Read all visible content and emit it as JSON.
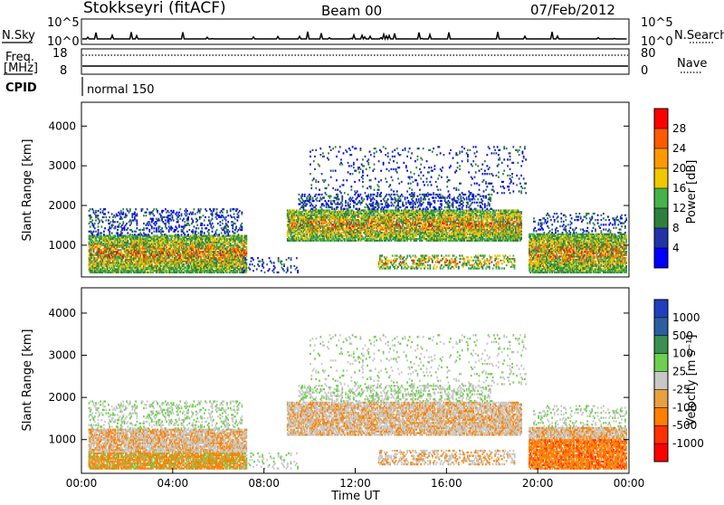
{
  "header": {
    "station": "Stokkseyri (fitACF)",
    "beam": "Beam 00",
    "date": "07/Feb/2012"
  },
  "noise_panel": {
    "left_label": "N.Sky",
    "left_top": "10^5",
    "left_bottom": "10^0",
    "right_top": "10^5",
    "right_bottom": "10^0",
    "right_label": "N.Search"
  },
  "freq_panel": {
    "left_label_1": "Freq.",
    "left_label_2": "[MHz]",
    "left_top": "18",
    "left_bottom": "8",
    "right_top": "80",
    "right_bottom": "0",
    "right_label": "Nave"
  },
  "cpid_panel": {
    "label": "CPID",
    "mode": "normal 150"
  },
  "colors": {
    "power": [
      "#0000ff",
      "#2233aa",
      "#2f7f3f",
      "#46b24a",
      "#f0c800",
      "#ff9900",
      "#ff5a00",
      "#ff0000"
    ],
    "velocity": [
      "#1f3fbf",
      "#2c5f9f",
      "#3b8f4f",
      "#6fcf4f",
      "#c8c8c8",
      "#e8a040",
      "#ff7f00",
      "#ff3000",
      "#ff0000"
    ]
  },
  "chart_data": [
    {
      "type": "heatmap",
      "ylabel": "Slant Range [km]",
      "x_ticks": [
        "00:00",
        "04:00",
        "08:00",
        "12:00",
        "16:00",
        "20:00",
        "00:00"
      ],
      "y_ticks": [
        "1000",
        "2000",
        "3000",
        "4000"
      ],
      "ylim": [
        200,
        4600
      ],
      "colorbar": {
        "label": "Power [dB]",
        "ticks": [
          "4",
          "8",
          "12",
          "16",
          "20",
          "24",
          "28"
        ]
      }
    },
    {
      "type": "heatmap",
      "xlabel": "Time UT",
      "ylabel": "Slant Range [km]",
      "x_ticks": [
        "00:00",
        "04:00",
        "08:00",
        "12:00",
        "16:00",
        "20:00",
        "00:00"
      ],
      "y_ticks": [
        "1000",
        "2000",
        "3000",
        "4000"
      ],
      "ylim": [
        200,
        4600
      ],
      "colorbar": {
        "label": "Velocity [m s⁻¹]",
        "ticks": [
          "1000",
          "500",
          "100",
          "25",
          "-25",
          "-100",
          "-500",
          "-1000"
        ]
      }
    }
  ]
}
